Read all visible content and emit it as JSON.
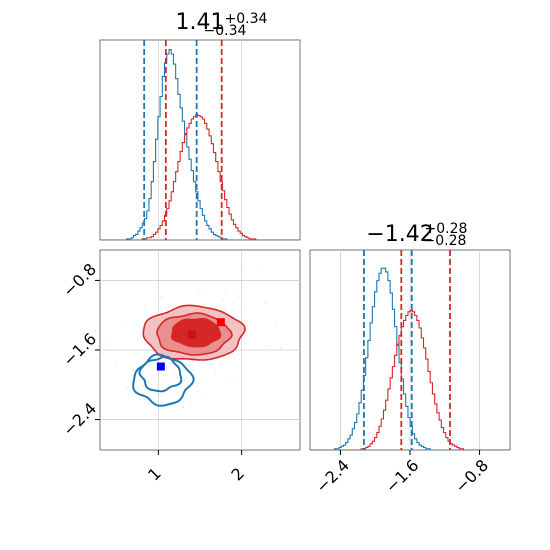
{
  "chart_data": {
    "type": "corner",
    "panels": [
      {
        "id": "marginal-x",
        "type": "histogram",
        "title": {
          "value": "1.41",
          "plus": "+0.34",
          "minus": "−0.34"
        },
        "xlim": [
          0.3,
          2.7
        ],
        "grid": true,
        "series": [
          {
            "color": "#1f77b4",
            "bin_edges_start": 0.3,
            "bin_width": 0.0267,
            "counts": [
              0,
              0,
              0,
              0,
              0,
              0,
              0,
              0,
              0,
              0,
              0,
              0,
              1,
              1,
              2,
              4,
              5,
              8,
              11,
              15,
              19,
              26,
              37,
              52,
              70,
              90,
              110,
              128,
              146,
              158,
              166,
              170,
              166,
              157,
              144,
              130,
              118,
              106,
              95,
              83,
              72,
              62,
              52,
              43,
              35,
              28,
              22,
              17,
              13,
              10,
              7,
              5,
              4,
              3,
              2,
              1,
              1,
              0,
              0,
              0,
              0,
              0,
              0,
              0,
              0,
              0,
              0,
              0,
              0,
              0,
              0,
              0,
              0,
              0,
              0,
              0,
              0,
              0,
              0,
              0,
              0,
              0,
              0,
              0,
              0,
              0,
              0,
              0,
              0,
              0
            ]
          },
          {
            "color": "#d62728",
            "bin_edges_start": 0.3,
            "bin_width": 0.0267,
            "counts": [
              0,
              0,
              0,
              0,
              0,
              0,
              0,
              0,
              0,
              0,
              0,
              0,
              0,
              0,
              0,
              0,
              0,
              0,
              0,
              1,
              1,
              2,
              2,
              3,
              5,
              7,
              10,
              13,
              17,
              22,
              28,
              35,
              43,
              52,
              61,
              70,
              79,
              87,
              94,
              100,
              104,
              108,
              110,
              112,
              111,
              110,
              108,
              104,
              99,
              93,
              86,
              78,
              70,
              61,
              52,
              44,
              36,
              29,
              23,
              18,
              14,
              11,
              8,
              6,
              4,
              3,
              2,
              1,
              1,
              1,
              0,
              0,
              0,
              0,
              0,
              0,
              0,
              0,
              0,
              0,
              0,
              0,
              0,
              0,
              0,
              0,
              0,
              0,
              0,
              0
            ]
          }
        ],
        "quantiles": [
          {
            "color": "#1f77b4",
            "values": [
              0.83,
              1.46
            ]
          },
          {
            "color": "#d62728",
            "values": [
              1.09,
              1.76
            ]
          }
        ]
      },
      {
        "id": "joint",
        "type": "contour",
        "xlim": [
          0.3,
          2.7
        ],
        "ylim": [
          -2.75,
          -0.45
        ],
        "xticks": [
          "1",
          "2"
        ],
        "xtick_values": [
          1,
          2
        ],
        "yticks": [
          "−0.8",
          "−1.6",
          "−2.4"
        ],
        "ytick_values": [
          -0.8,
          -1.6,
          -2.4
        ],
        "grid": true,
        "red_contours": [
          {
            "level": "outer",
            "fill": "#f3c3c3",
            "stroke": "#d62728",
            "center": [
              1.42,
              -1.41
            ],
            "rx": 1.2,
            "ry": 0.62
          },
          {
            "level": "middle",
            "fill": "#e98f8f",
            "stroke": "#d62728",
            "center": [
              1.42,
              -1.42
            ],
            "rx": 0.88,
            "ry": 0.47
          },
          {
            "level": "inner",
            "fill": "#d62728",
            "stroke": "#d62728",
            "center": [
              1.45,
              -1.4
            ],
            "rx": 0.58,
            "ry": 0.32
          }
        ],
        "blue_contours": [
          {
            "level": "outer",
            "center": [
              1.05,
              -1.95
            ],
            "rx": 0.68,
            "ry": 0.55
          },
          {
            "level": "middle",
            "center": [
              1.03,
              -1.88
            ],
            "rx": 0.48,
            "ry": 0.38
          }
        ],
        "markers": [
          {
            "color": "#ff0000",
            "x": 1.75,
            "y": -1.28
          },
          {
            "color": "#cc1111",
            "x": 1.4,
            "y": -1.42
          },
          {
            "color": "#0000ff",
            "x": 1.03,
            "y": -1.79
          }
        ]
      },
      {
        "id": "marginal-y",
        "type": "histogram",
        "title": {
          "value": "−1.42",
          "plus": "+0.28",
          "minus": "−0.28"
        },
        "xlim": [
          -2.75,
          -0.45
        ],
        "xticks": [
          "−2.4",
          "−1.6",
          "−0.8"
        ],
        "xtick_values": [
          -2.4,
          -1.6,
          -0.8
        ],
        "grid": true,
        "series": [
          {
            "color": "#1f77b4",
            "bin_edges_start": -2.75,
            "bin_width": 0.0256,
            "counts": [
              0,
              0,
              0,
              0,
              0,
              0,
              0,
              0,
              0,
              0,
              0,
              1,
              1,
              2,
              3,
              4,
              6,
              9,
              12,
              17,
              22,
              29,
              38,
              48,
              60,
              74,
              88,
              102,
              115,
              127,
              136,
              142,
              146,
              146,
              143,
              136,
              126,
              113,
              99,
              84,
              70,
              57,
              45,
              35,
              26,
              19,
              13,
              9,
              6,
              4,
              3,
              2,
              1,
              1,
              0,
              0,
              0,
              0,
              0,
              0,
              0,
              0,
              0,
              0,
              0,
              0,
              0,
              0,
              0,
              0,
              0,
              0,
              0,
              0,
              0,
              0,
              0,
              0,
              0,
              0,
              0,
              0,
              0,
              0,
              0,
              0,
              0,
              0,
              0,
              0
            ]
          },
          {
            "color": "#d62728",
            "bin_edges_start": -2.75,
            "bin_width": 0.0256,
            "counts": [
              0,
              0,
              0,
              0,
              0,
              0,
              0,
              0,
              0,
              0,
              0,
              0,
              0,
              0,
              0,
              0,
              0,
              0,
              0,
              0,
              0,
              0,
              0,
              1,
              1,
              2,
              3,
              5,
              7,
              10,
              14,
              19,
              25,
              32,
              40,
              49,
              58,
              67,
              76,
              85,
              92,
              99,
              104,
              108,
              111,
              112,
              111,
              108,
              104,
              98,
              90,
              82,
              73,
              63,
              54,
              45,
              37,
              30,
              24,
              18,
              14,
              10,
              7,
              5,
              4,
              3,
              2,
              1,
              1,
              0,
              0,
              0,
              0,
              0,
              0,
              0,
              0,
              0,
              0,
              0,
              0,
              0,
              0,
              0,
              0,
              0,
              0,
              0,
              0,
              0
            ]
          }
        ],
        "quantiles": [
          {
            "color": "#1f77b4",
            "values": [
              -2.13,
              -1.58
            ]
          },
          {
            "color": "#d62728",
            "values": [
              -1.7,
              -1.14
            ]
          }
        ]
      }
    ]
  }
}
